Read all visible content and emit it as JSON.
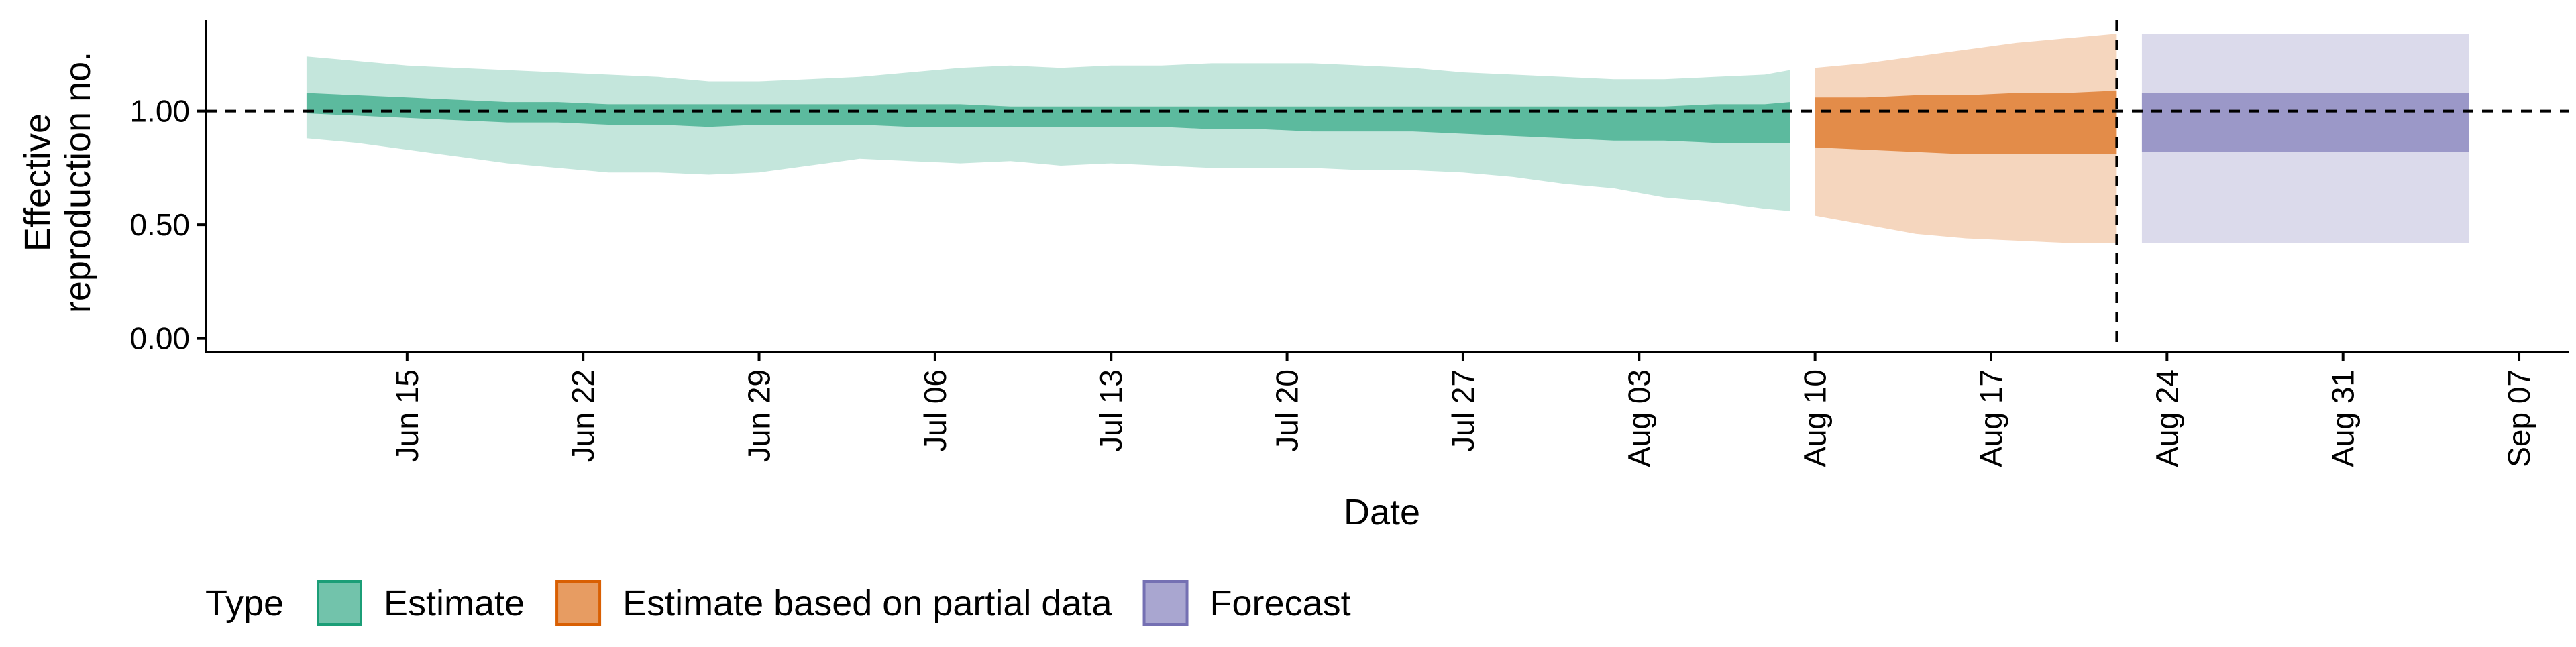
{
  "chart_data": {
    "type": "area",
    "xlabel": "Date",
    "ylabel_lines": [
      "Effective",
      "reproduction no."
    ],
    "x_ticks": [
      "Jun 15",
      "Jun 22",
      "Jun 29",
      "Jul 06",
      "Jul 13",
      "Jul 20",
      "Jul 27",
      "Aug 03",
      "Aug 10",
      "Aug 17",
      "Aug 24",
      "Aug 31",
      "Sep 07"
    ],
    "x_tick_dates": [
      "2020-06-15",
      "2020-06-22",
      "2020-06-29",
      "2020-07-06",
      "2020-07-13",
      "2020-07-20",
      "2020-07-27",
      "2020-08-03",
      "2020-08-10",
      "2020-08-17",
      "2020-08-24",
      "2020-08-31",
      "2020-09-07"
    ],
    "xlim": [
      "2020-06-07",
      "2020-09-09"
    ],
    "y_ticks": [
      "0.00",
      "0.50",
      "1.00"
    ],
    "y_tick_values": [
      0,
      0.5,
      1.0
    ],
    "ylim": [
      -0.06,
      1.4
    ],
    "reference_hline": 1.0,
    "reference_vline": "2020-08-22",
    "legend": {
      "title": "Type",
      "position": "bottom",
      "entries": [
        "Estimate",
        "Estimate based on partial data",
        "Forecast"
      ]
    },
    "colors": {
      "Estimate": "#1b9e77",
      "Estimate based on partial data": "#d95f02",
      "Forecast": "#7570b3"
    },
    "series": [
      {
        "name": "Estimate",
        "dates": [
          "2020-06-11",
          "2020-06-13",
          "2020-06-15",
          "2020-06-17",
          "2020-06-19",
          "2020-06-21",
          "2020-06-23",
          "2020-06-25",
          "2020-06-27",
          "2020-06-29",
          "2020-07-01",
          "2020-07-03",
          "2020-07-05",
          "2020-07-07",
          "2020-07-09",
          "2020-07-11",
          "2020-07-13",
          "2020-07-15",
          "2020-07-17",
          "2020-07-19",
          "2020-07-21",
          "2020-07-23",
          "2020-07-25",
          "2020-07-27",
          "2020-07-29",
          "2020-07-31",
          "2020-08-02",
          "2020-08-04",
          "2020-08-06",
          "2020-08-08",
          "2020-08-09"
        ],
        "lower90": [
          0.88,
          0.86,
          0.83,
          0.8,
          0.77,
          0.75,
          0.73,
          0.73,
          0.72,
          0.73,
          0.76,
          0.79,
          0.78,
          0.77,
          0.78,
          0.76,
          0.77,
          0.76,
          0.75,
          0.75,
          0.75,
          0.74,
          0.74,
          0.73,
          0.71,
          0.68,
          0.66,
          0.62,
          0.6,
          0.57,
          0.56
        ],
        "upper90": [
          1.24,
          1.22,
          1.2,
          1.19,
          1.18,
          1.17,
          1.16,
          1.15,
          1.13,
          1.13,
          1.14,
          1.15,
          1.17,
          1.19,
          1.2,
          1.19,
          1.2,
          1.2,
          1.21,
          1.21,
          1.21,
          1.2,
          1.19,
          1.17,
          1.16,
          1.15,
          1.14,
          1.14,
          1.15,
          1.16,
          1.18
        ],
        "lower50": [
          0.99,
          0.98,
          0.97,
          0.96,
          0.95,
          0.95,
          0.94,
          0.94,
          0.93,
          0.94,
          0.94,
          0.94,
          0.93,
          0.93,
          0.93,
          0.93,
          0.93,
          0.93,
          0.92,
          0.92,
          0.91,
          0.91,
          0.91,
          0.9,
          0.89,
          0.88,
          0.87,
          0.87,
          0.86,
          0.86,
          0.86
        ],
        "upper50": [
          1.08,
          1.07,
          1.06,
          1.05,
          1.04,
          1.04,
          1.03,
          1.03,
          1.03,
          1.03,
          1.03,
          1.03,
          1.03,
          1.03,
          1.02,
          1.02,
          1.02,
          1.02,
          1.02,
          1.02,
          1.02,
          1.02,
          1.02,
          1.02,
          1.02,
          1.02,
          1.02,
          1.02,
          1.03,
          1.03,
          1.04
        ]
      },
      {
        "name": "Estimate based on partial data",
        "dates": [
          "2020-08-10",
          "2020-08-12",
          "2020-08-14",
          "2020-08-16",
          "2020-08-18",
          "2020-08-20",
          "2020-08-22"
        ],
        "lower90": [
          0.54,
          0.5,
          0.46,
          0.44,
          0.43,
          0.42,
          0.42
        ],
        "upper90": [
          1.19,
          1.21,
          1.24,
          1.27,
          1.3,
          1.32,
          1.34
        ],
        "lower50": [
          0.84,
          0.83,
          0.82,
          0.81,
          0.81,
          0.81,
          0.81
        ],
        "upper50": [
          1.06,
          1.06,
          1.07,
          1.07,
          1.08,
          1.08,
          1.09
        ]
      },
      {
        "name": "Forecast",
        "dates": [
          "2020-08-23",
          "2020-09-05"
        ],
        "lower90": [
          0.42,
          0.42
        ],
        "upper90": [
          1.34,
          1.34
        ],
        "lower50": [
          0.82,
          0.82
        ],
        "upper50": [
          1.08,
          1.08
        ]
      }
    ]
  }
}
